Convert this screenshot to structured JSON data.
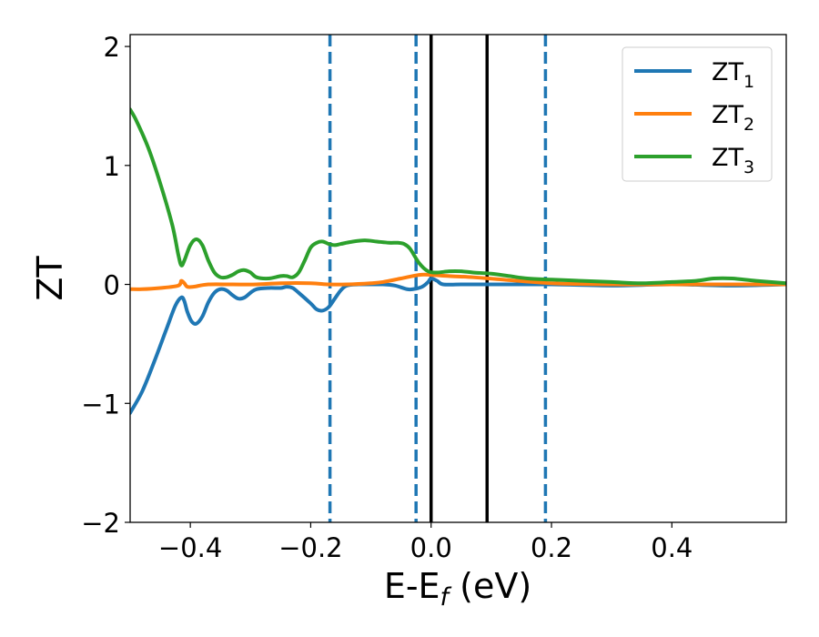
{
  "chart_data": {
    "type": "line",
    "xlabel_main": "E-E",
    "xlabel_sub": "f",
    "xlabel_unit": " (eV)",
    "ylabel": "ZT",
    "xlim": [
      -0.5,
      0.59
    ],
    "ylim": [
      -2,
      2.1
    ],
    "xticks": [
      -0.4,
      -0.2,
      0.0,
      0.2,
      0.4
    ],
    "xtick_labels": [
      "−0.4",
      "−0.2",
      "0.0",
      "0.2",
      "0.4"
    ],
    "yticks": [
      -2,
      -1,
      0,
      1,
      2
    ],
    "ytick_labels": [
      "−2",
      "−1",
      "0",
      "1",
      "2"
    ],
    "grid": false,
    "legend_position": "top-right",
    "vlines_solid": [
      0.0,
      0.093
    ],
    "vlines_dashed": [
      -0.168,
      -0.025,
      0.19
    ],
    "series": [
      {
        "name": "ZT",
        "sub": "1",
        "color": "#1f77b4",
        "points": [
          [
            -0.5,
            -1.08
          ],
          [
            -0.48,
            -0.9
          ],
          [
            -0.46,
            -0.65
          ],
          [
            -0.44,
            -0.38
          ],
          [
            -0.425,
            -0.18
          ],
          [
            -0.415,
            -0.11
          ],
          [
            -0.41,
            -0.14
          ],
          [
            -0.405,
            -0.23
          ],
          [
            -0.398,
            -0.31
          ],
          [
            -0.39,
            -0.33
          ],
          [
            -0.38,
            -0.27
          ],
          [
            -0.37,
            -0.15
          ],
          [
            -0.36,
            -0.07
          ],
          [
            -0.35,
            -0.04
          ],
          [
            -0.34,
            -0.05
          ],
          [
            -0.33,
            -0.09
          ],
          [
            -0.32,
            -0.12
          ],
          [
            -0.31,
            -0.11
          ],
          [
            -0.3,
            -0.07
          ],
          [
            -0.29,
            -0.04
          ],
          [
            -0.27,
            -0.03
          ],
          [
            -0.25,
            -0.03
          ],
          [
            -0.24,
            -0.02
          ],
          [
            -0.23,
            -0.03
          ],
          [
            -0.22,
            -0.07
          ],
          [
            -0.2,
            -0.16
          ],
          [
            -0.19,
            -0.21
          ],
          [
            -0.18,
            -0.22
          ],
          [
            -0.17,
            -0.19
          ],
          [
            -0.16,
            -0.12
          ],
          [
            -0.15,
            -0.05
          ],
          [
            -0.14,
            -0.01
          ],
          [
            -0.12,
            0.0
          ],
          [
            -0.1,
            0.0
          ],
          [
            -0.08,
            0.0
          ],
          [
            -0.06,
            -0.01
          ],
          [
            -0.04,
            -0.04
          ],
          [
            -0.03,
            -0.04
          ],
          [
            -0.015,
            -0.02
          ],
          [
            -0.005,
            0.02
          ],
          [
            0.0,
            0.05
          ],
          [
            0.01,
            0.03
          ],
          [
            0.02,
            0.0
          ],
          [
            0.05,
            0.0
          ],
          [
            0.1,
            0.0
          ],
          [
            0.2,
            0.0
          ],
          [
            0.3,
            -0.01
          ],
          [
            0.4,
            0.0
          ],
          [
            0.5,
            -0.01
          ],
          [
            0.59,
            0.0
          ]
        ]
      },
      {
        "name": "ZT",
        "sub": "2",
        "color": "#ff7f0e",
        "points": [
          [
            -0.5,
            -0.04
          ],
          [
            -0.48,
            -0.04
          ],
          [
            -0.45,
            -0.03
          ],
          [
            -0.42,
            -0.01
          ],
          [
            -0.415,
            0.03
          ],
          [
            -0.41,
            0.01
          ],
          [
            -0.405,
            -0.02
          ],
          [
            -0.395,
            -0.02
          ],
          [
            -0.37,
            0.0
          ],
          [
            -0.33,
            0.0
          ],
          [
            -0.29,
            0.0
          ],
          [
            -0.25,
            0.01
          ],
          [
            -0.2,
            0.01
          ],
          [
            -0.17,
            0.0
          ],
          [
            -0.14,
            0.0
          ],
          [
            -0.1,
            0.01
          ],
          [
            -0.08,
            0.02
          ],
          [
            -0.05,
            0.05
          ],
          [
            -0.02,
            0.08
          ],
          [
            0.0,
            0.08
          ],
          [
            0.03,
            0.07
          ],
          [
            0.07,
            0.06
          ],
          [
            0.12,
            0.04
          ],
          [
            0.2,
            0.01
          ],
          [
            0.3,
            0.0
          ],
          [
            0.4,
            0.0
          ],
          [
            0.5,
            0.0
          ],
          [
            0.59,
            0.0
          ]
        ]
      },
      {
        "name": "ZT",
        "sub": "3",
        "color": "#2ca02c",
        "points": [
          [
            -0.5,
            1.47
          ],
          [
            -0.49,
            1.38
          ],
          [
            -0.47,
            1.15
          ],
          [
            -0.45,
            0.85
          ],
          [
            -0.43,
            0.5
          ],
          [
            -0.42,
            0.25
          ],
          [
            -0.415,
            0.16
          ],
          [
            -0.41,
            0.2
          ],
          [
            -0.4,
            0.33
          ],
          [
            -0.39,
            0.38
          ],
          [
            -0.38,
            0.33
          ],
          [
            -0.37,
            0.2
          ],
          [
            -0.36,
            0.1
          ],
          [
            -0.35,
            0.06
          ],
          [
            -0.34,
            0.06
          ],
          [
            -0.33,
            0.08
          ],
          [
            -0.32,
            0.11
          ],
          [
            -0.31,
            0.12
          ],
          [
            -0.3,
            0.1
          ],
          [
            -0.29,
            0.06
          ],
          [
            -0.27,
            0.05
          ],
          [
            -0.25,
            0.07
          ],
          [
            -0.24,
            0.07
          ],
          [
            -0.23,
            0.06
          ],
          [
            -0.22,
            0.1
          ],
          [
            -0.21,
            0.2
          ],
          [
            -0.2,
            0.31
          ],
          [
            -0.19,
            0.35
          ],
          [
            -0.18,
            0.36
          ],
          [
            -0.17,
            0.34
          ],
          [
            -0.16,
            0.33
          ],
          [
            -0.15,
            0.34
          ],
          [
            -0.13,
            0.36
          ],
          [
            -0.11,
            0.37
          ],
          [
            -0.09,
            0.36
          ],
          [
            -0.07,
            0.35
          ],
          [
            -0.055,
            0.35
          ],
          [
            -0.045,
            0.34
          ],
          [
            -0.035,
            0.3
          ],
          [
            -0.02,
            0.18
          ],
          [
            -0.005,
            0.11
          ],
          [
            0.01,
            0.1
          ],
          [
            0.03,
            0.11
          ],
          [
            0.05,
            0.11
          ],
          [
            0.07,
            0.1
          ],
          [
            0.1,
            0.09
          ],
          [
            0.13,
            0.07
          ],
          [
            0.16,
            0.05
          ],
          [
            0.2,
            0.04
          ],
          [
            0.25,
            0.03
          ],
          [
            0.3,
            0.02
          ],
          [
            0.35,
            0.01
          ],
          [
            0.4,
            0.02
          ],
          [
            0.44,
            0.03
          ],
          [
            0.47,
            0.05
          ],
          [
            0.5,
            0.05
          ],
          [
            0.54,
            0.03
          ],
          [
            0.59,
            0.01
          ]
        ]
      }
    ]
  }
}
